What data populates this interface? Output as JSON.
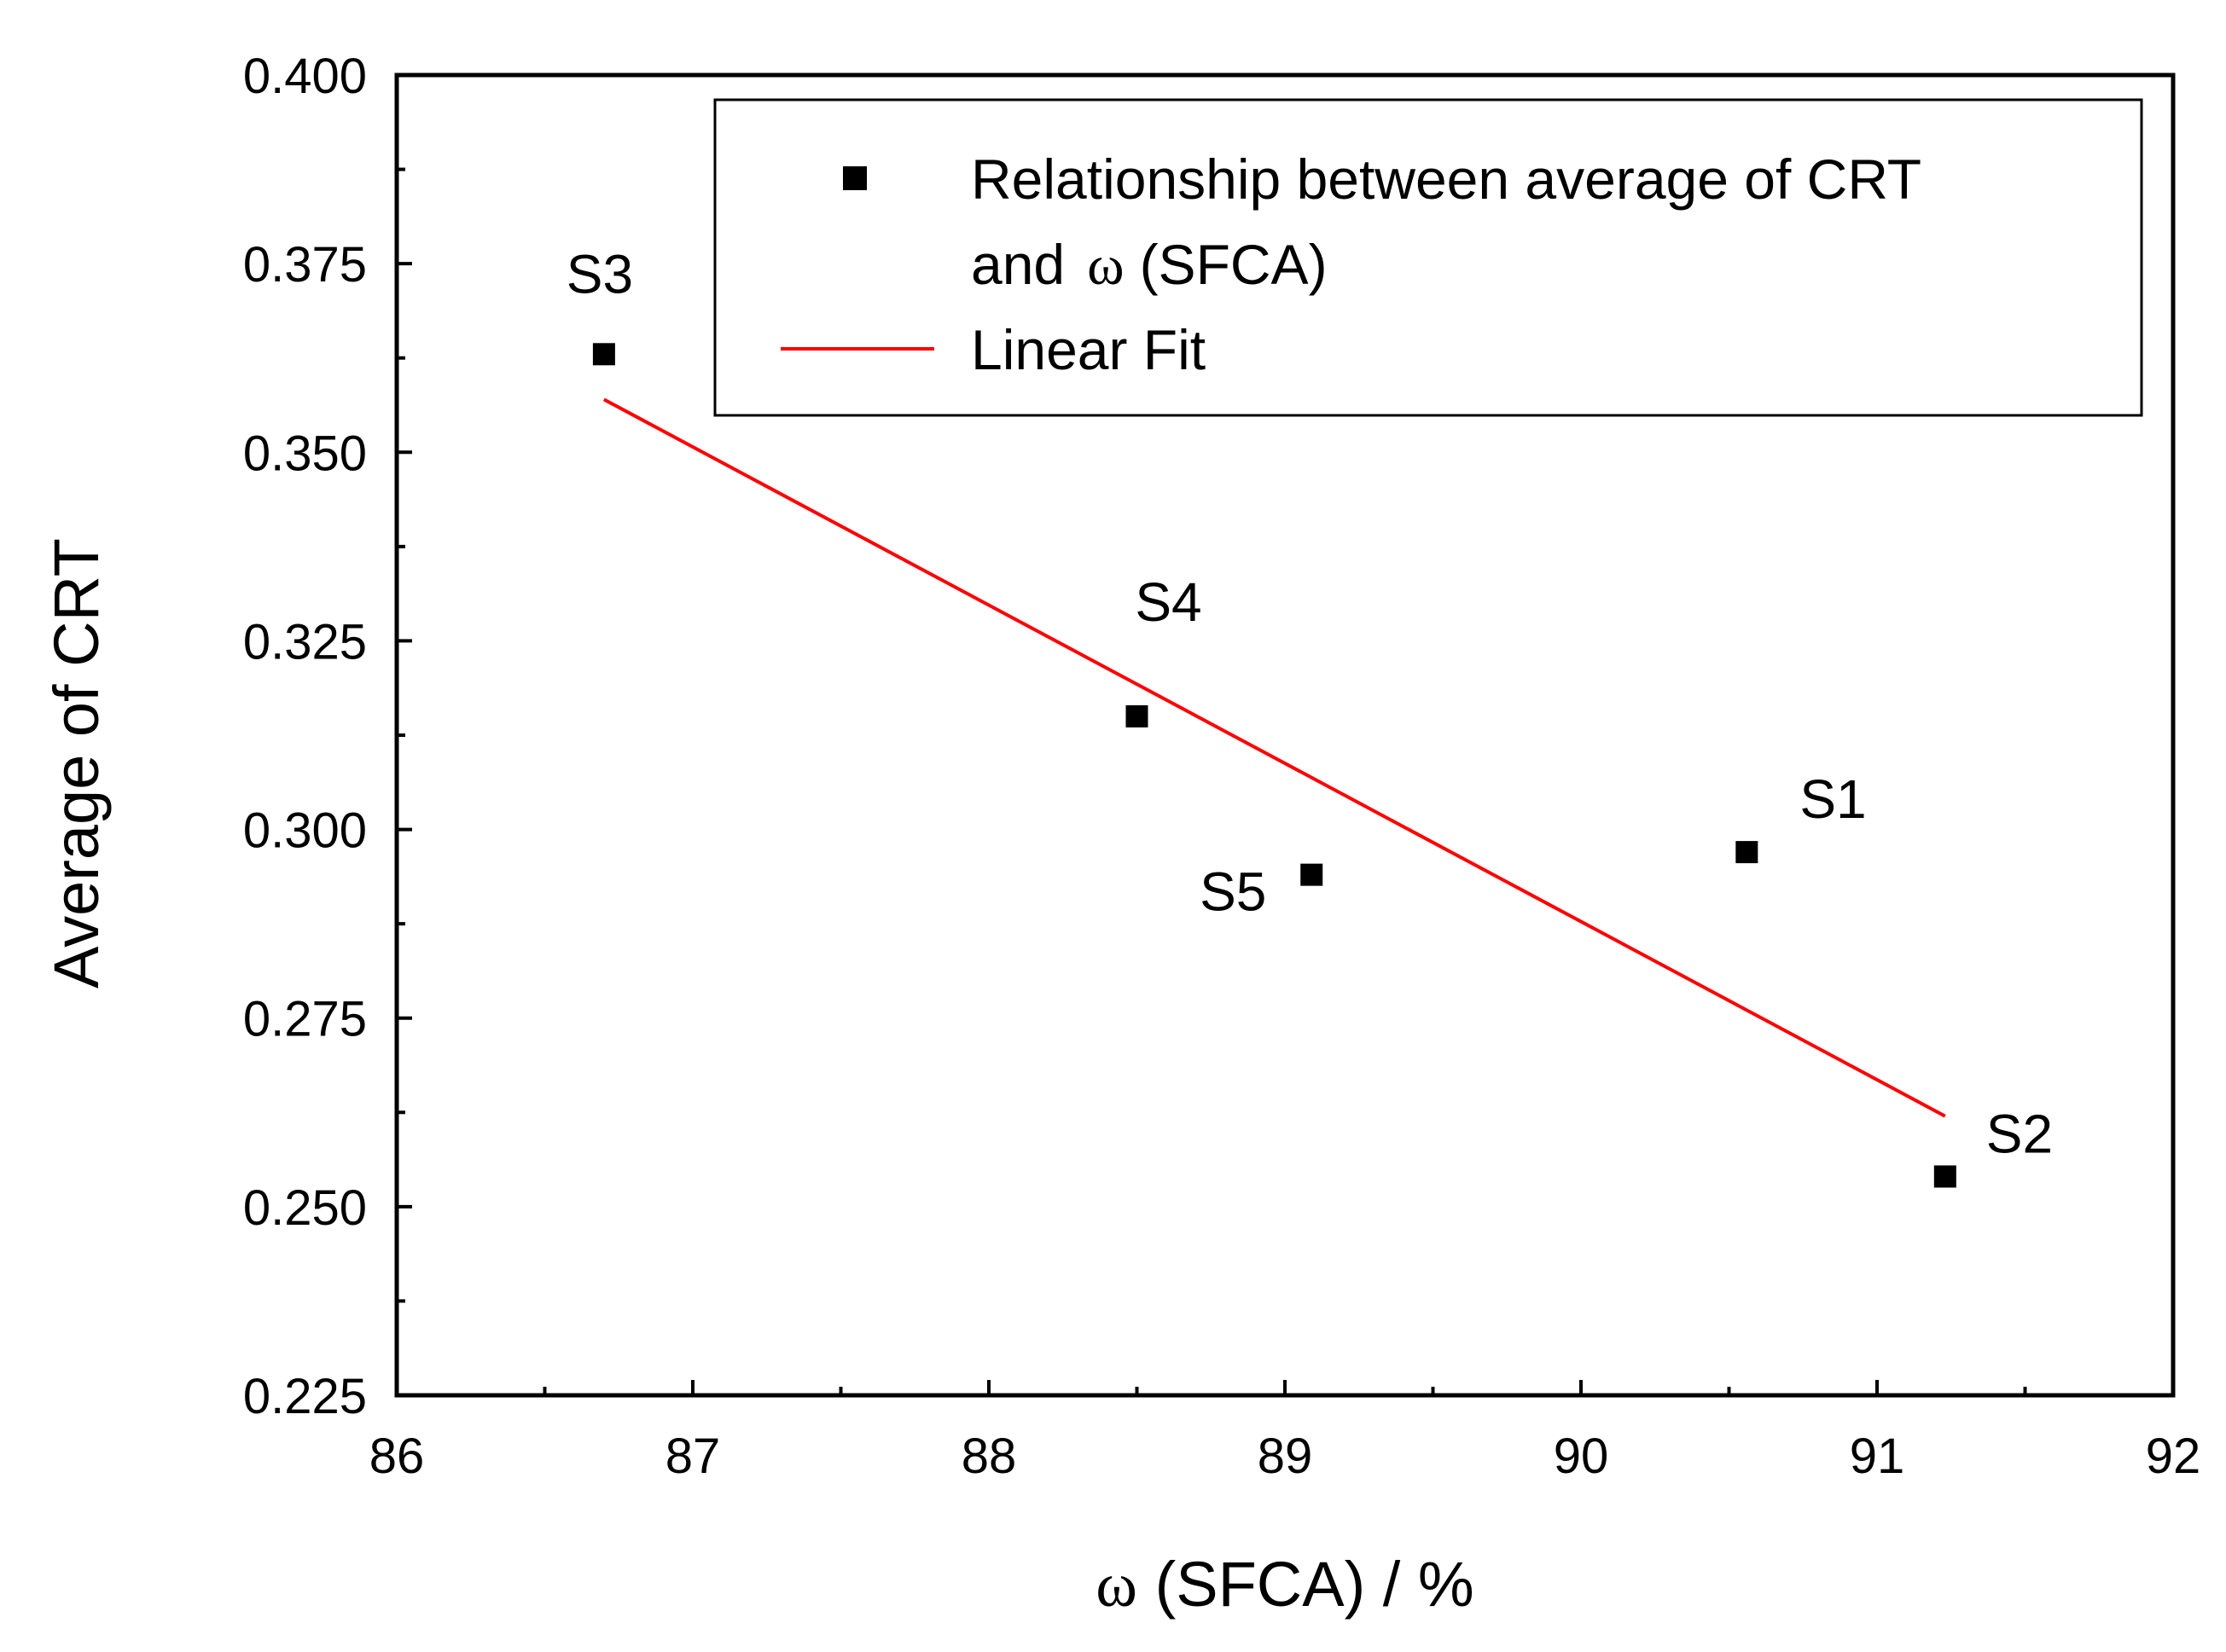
{
  "chart_data": {
    "type": "scatter",
    "xlabel": "ω (SFCA) / %",
    "ylabel": "Average of CRT",
    "xlim": [
      86,
      92
    ],
    "ylim": [
      0.225,
      0.4
    ],
    "x_ticks": [
      "86",
      "87",
      "88",
      "89",
      "90",
      "91",
      "92"
    ],
    "y_ticks": [
      "0.225",
      "0.250",
      "0.275",
      "0.300",
      "0.325",
      "0.350",
      "0.375",
      "0.400"
    ],
    "series": [
      {
        "name": "Relationship between average of CRT and ω (SFCA)",
        "legend_line1": "Relationship between average of CRT",
        "legend_line2_prefix": "and",
        "legend_line2_symbol": "ω",
        "legend_line2_suffix": "(SFCA)",
        "marker": "square",
        "color": "#000000",
        "points": [
          {
            "label": "S1",
            "x": 90.56,
            "y": 0.297
          },
          {
            "label": "S2",
            "x": 91.23,
            "y": 0.254
          },
          {
            "label": "S3",
            "x": 86.7,
            "y": 0.363
          },
          {
            "label": "S4",
            "x": 88.5,
            "y": 0.315
          },
          {
            "label": "S5",
            "x": 89.09,
            "y": 0.294
          }
        ]
      },
      {
        "name": "Linear Fit",
        "type": "line",
        "color": "#ff0000",
        "x": [
          86.7,
          91.23
        ],
        "y": [
          0.357,
          0.262
        ]
      }
    ],
    "legend_position": "top-right",
    "grid": false
  }
}
